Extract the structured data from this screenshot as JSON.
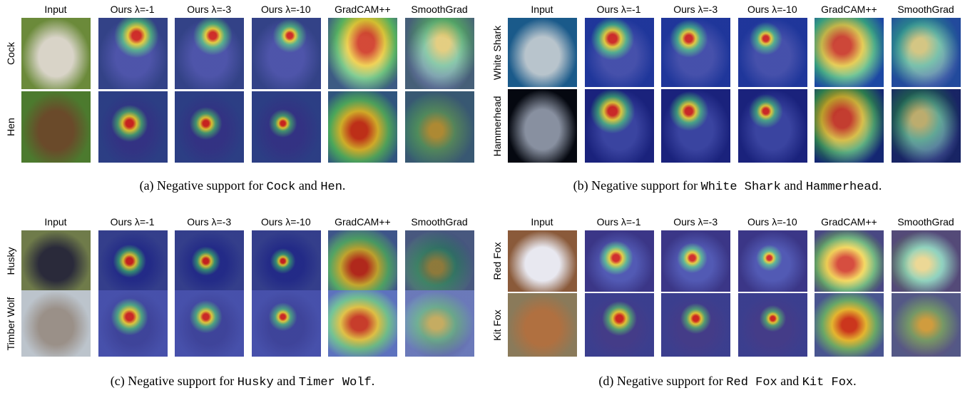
{
  "panels": [
    {
      "columns": [
        "Input",
        "Ours λ=-1",
        "Ours λ=-3",
        "Ours λ=-10",
        "GradCAM++",
        "SmoothGrad"
      ],
      "rows": [
        "Cock",
        "Hen"
      ],
      "caption": [
        "(a) Negative support for",
        "Cock",
        "and",
        "Hen",
        "."
      ]
    },
    {
      "columns": [
        "Input",
        "Ours λ=-1",
        "Ours λ=-3",
        "Ours λ=-10",
        "GradCAM++",
        "SmoothGrad"
      ],
      "rows": [
        "White Shark",
        "Hammerhead"
      ],
      "caption": [
        "(b) Negative support for",
        "White Shark",
        "and",
        "Hammerhead",
        "."
      ]
    },
    {
      "columns": [
        "Input",
        "Ours λ=-1",
        "Ours λ=-3",
        "Ours λ=-10",
        "GradCAM++",
        "SmoothGrad"
      ],
      "rows": [
        "Husky",
        "Timber Wolf"
      ],
      "caption": [
        "(c) Negative support for",
        "Husky",
        "and",
        "Timer Wolf",
        "."
      ]
    },
    {
      "columns": [
        "Input",
        "Ours λ=-1",
        "Ours λ=-3",
        "Ours λ=-10",
        "GradCAM++",
        "SmoothGrad"
      ],
      "rows": [
        "Red Fox",
        "Kit Fox"
      ],
      "caption": [
        "(d) Negative support for",
        "Red Fox",
        "and",
        "Kit Fox",
        "."
      ]
    }
  ]
}
